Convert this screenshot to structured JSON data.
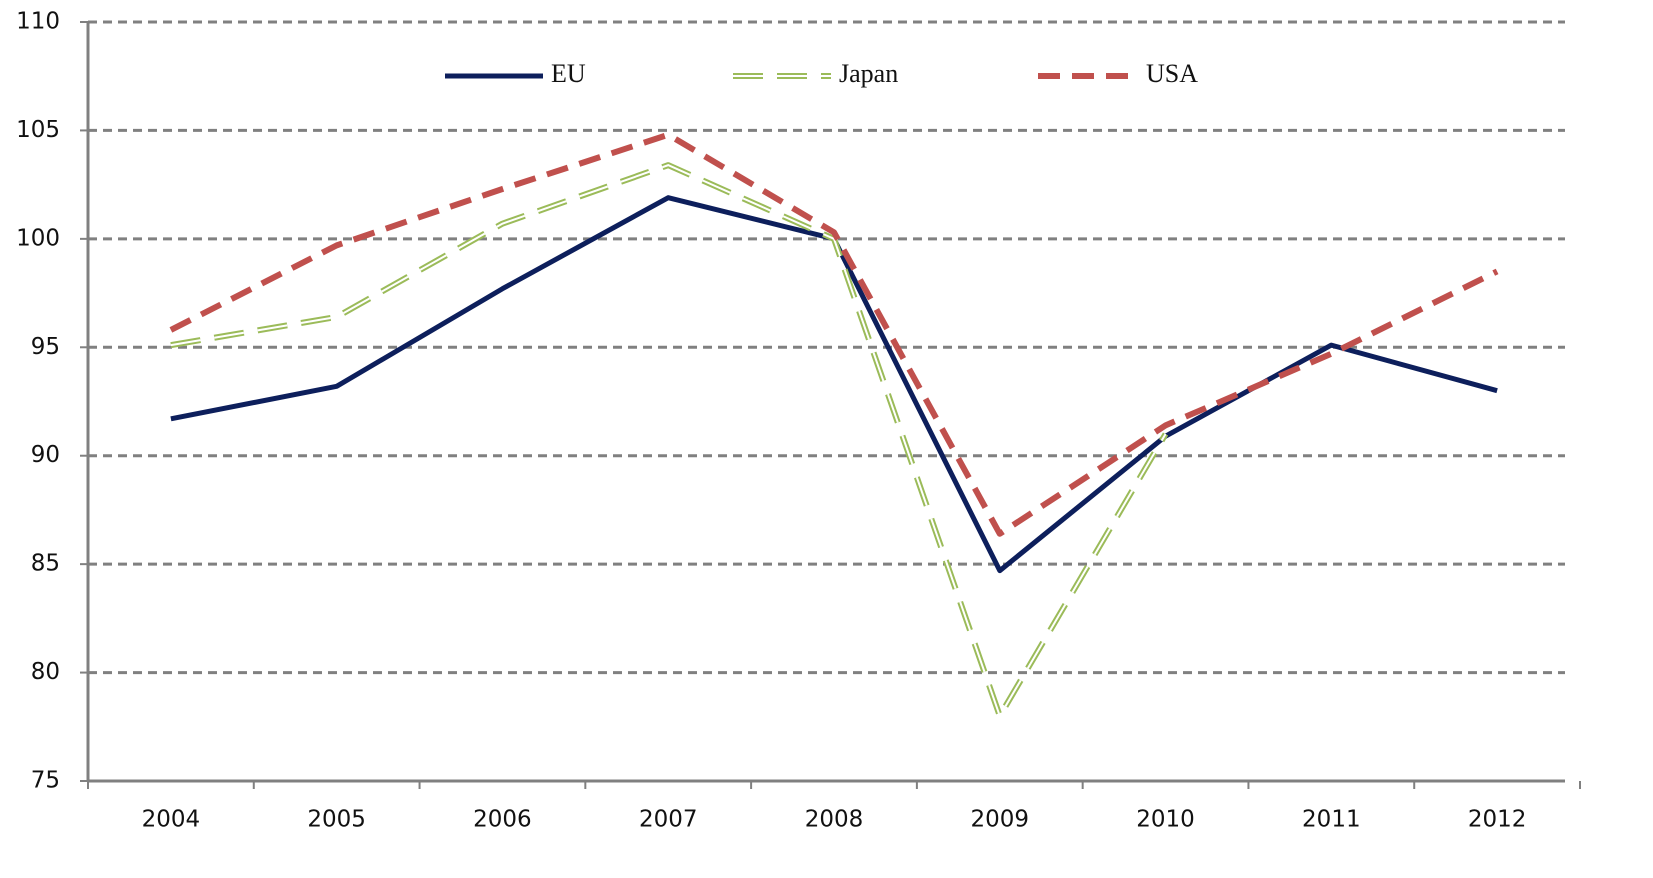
{
  "chart_data": {
    "type": "line",
    "categories": [
      "2004",
      "2005",
      "2006",
      "2007",
      "2008",
      "2009",
      "2010",
      "2011",
      "2012"
    ],
    "series": [
      {
        "name": "EU",
        "color": "#0d1f5c",
        "values": [
          91.7,
          93.2,
          97.7,
          101.9,
          100.0,
          84.7,
          90.9,
          95.1,
          93.0
        ]
      },
      {
        "name": "Japan",
        "color": "#9bbb59",
        "values": [
          95.1,
          96.4,
          100.7,
          103.4,
          100.0,
          78.0,
          91.0,
          null,
          null
        ]
      },
      {
        "name": "USA",
        "color": "#c0504d",
        "values": [
          95.8,
          99.7,
          102.3,
          104.8,
          100.3,
          86.4,
          91.4,
          94.7,
          98.5
        ]
      }
    ],
    "ylim": [
      75,
      110
    ],
    "yticks": [
      75,
      80,
      85,
      90,
      95,
      100,
      105,
      110
    ],
    "grid": true,
    "legend": "top"
  }
}
